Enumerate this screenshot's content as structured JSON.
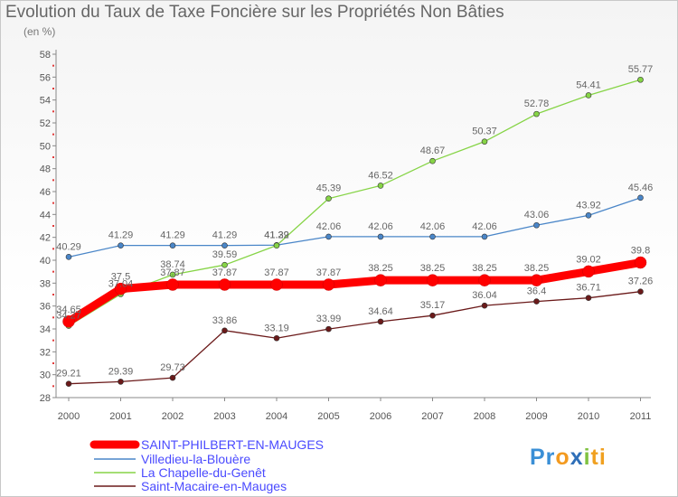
{
  "chart_data": {
    "type": "line",
    "title": "Evolution du Taux de Taxe Foncière sur les Propriétés Non Bâties",
    "subtitle": "(en %)",
    "x": [
      "2000",
      "2001",
      "2002",
      "2003",
      "2004",
      "2005",
      "2006",
      "2007",
      "2008",
      "2009",
      "2010",
      "2011"
    ],
    "ylim": [
      28,
      58
    ],
    "yticks": [
      28,
      30,
      32,
      34,
      36,
      38,
      40,
      42,
      44,
      46,
      48,
      50,
      52,
      54,
      56,
      58
    ],
    "grid": false,
    "legend": "bottom-left",
    "series": [
      {
        "name": "SAINT-PHILBERT-EN-MAUGES",
        "color": "#ff0000",
        "values": [
          34.65,
          37.5,
          37.87,
          37.87,
          37.87,
          37.87,
          38.25,
          38.25,
          38.25,
          38.25,
          39.02,
          39.8
        ],
        "labels": [
          "34.65",
          "37.5",
          "37.87",
          "37.87",
          "37.87",
          "37.87",
          "38.25",
          "38.25",
          "38.25",
          "38.25",
          "39.02",
          "39.8"
        ]
      },
      {
        "name": "Villedieu-la-Blouère",
        "color": "#4a86c8",
        "values": [
          40.29,
          41.29,
          41.29,
          41.29,
          41.32,
          42.06,
          42.06,
          42.06,
          42.06,
          43.06,
          43.92,
          45.46
        ],
        "labels": [
          "40.29",
          "41.29",
          "41.29",
          "41.29",
          "41.32",
          "42.06",
          "42.06",
          "42.06",
          "42.06",
          "43.06",
          "43.92",
          "45.46"
        ]
      },
      {
        "name": "La Chapelle-du-Genêt",
        "color": "#86d446",
        "values": [
          34.27,
          37.04,
          38.74,
          39.59,
          41.29,
          45.39,
          46.52,
          48.67,
          50.37,
          52.78,
          54.41,
          55.77
        ],
        "labels": [
          "34.27",
          "37.04",
          "38.74",
          "39.59",
          "41.29",
          "45.39",
          "46.52",
          "48.67",
          "50.37",
          "52.78",
          "54.41",
          "55.77"
        ]
      },
      {
        "name": "Saint-Macaire-en-Mauges",
        "color": "#6b1a1a",
        "values": [
          29.21,
          29.39,
          29.73,
          33.86,
          33.19,
          33.99,
          34.64,
          35.17,
          36.04,
          36.4,
          36.71,
          37.26
        ],
        "labels": [
          "29.21",
          "29.39",
          "29.73",
          "33.86",
          "33.19",
          "33.99",
          "34.64",
          "35.17",
          "36.04",
          "36.4",
          "36.71",
          "37.26"
        ]
      }
    ]
  },
  "logo": {
    "parts": [
      {
        "text": "Pr",
        "color": "#3a8fd6"
      },
      {
        "text": "o",
        "color": "#f39a1f"
      },
      {
        "text": "x",
        "color": "#2f6fb8"
      },
      {
        "text": "i",
        "color": "#7fc241"
      },
      {
        "text": "ti",
        "color": "#f0a020"
      }
    ]
  }
}
